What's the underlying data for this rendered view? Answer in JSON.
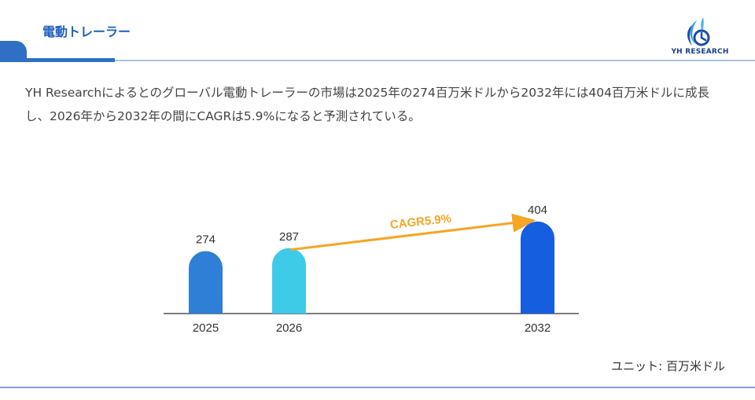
{
  "header": {
    "title": "電動トレーラー",
    "logo_text": "YH RESEARCH"
  },
  "description": "YH Researchによるとのグローバル電動トレーラーの市場は2025年の274百万米ドルから2032年には404百万米ドルに成長し、2026年から2032年の間にCAGRは5.9%になると予測されている。",
  "unit_label": "ユニット: 百万米ドル",
  "colors": {
    "accent": "#2f6fc4",
    "bar_2025": "#2f7fd6",
    "bar_2026": "#3ecbe8",
    "bar_2032": "#155ee0",
    "cagr_arrow": "#f5a623"
  },
  "chart_data": {
    "type": "bar",
    "categories": [
      "2025",
      "2026",
      "2032"
    ],
    "values": [
      274,
      287,
      404
    ],
    "annotation": "CAGR5.9%",
    "title": "",
    "xlabel": "",
    "ylabel": "",
    "grid": false
  }
}
